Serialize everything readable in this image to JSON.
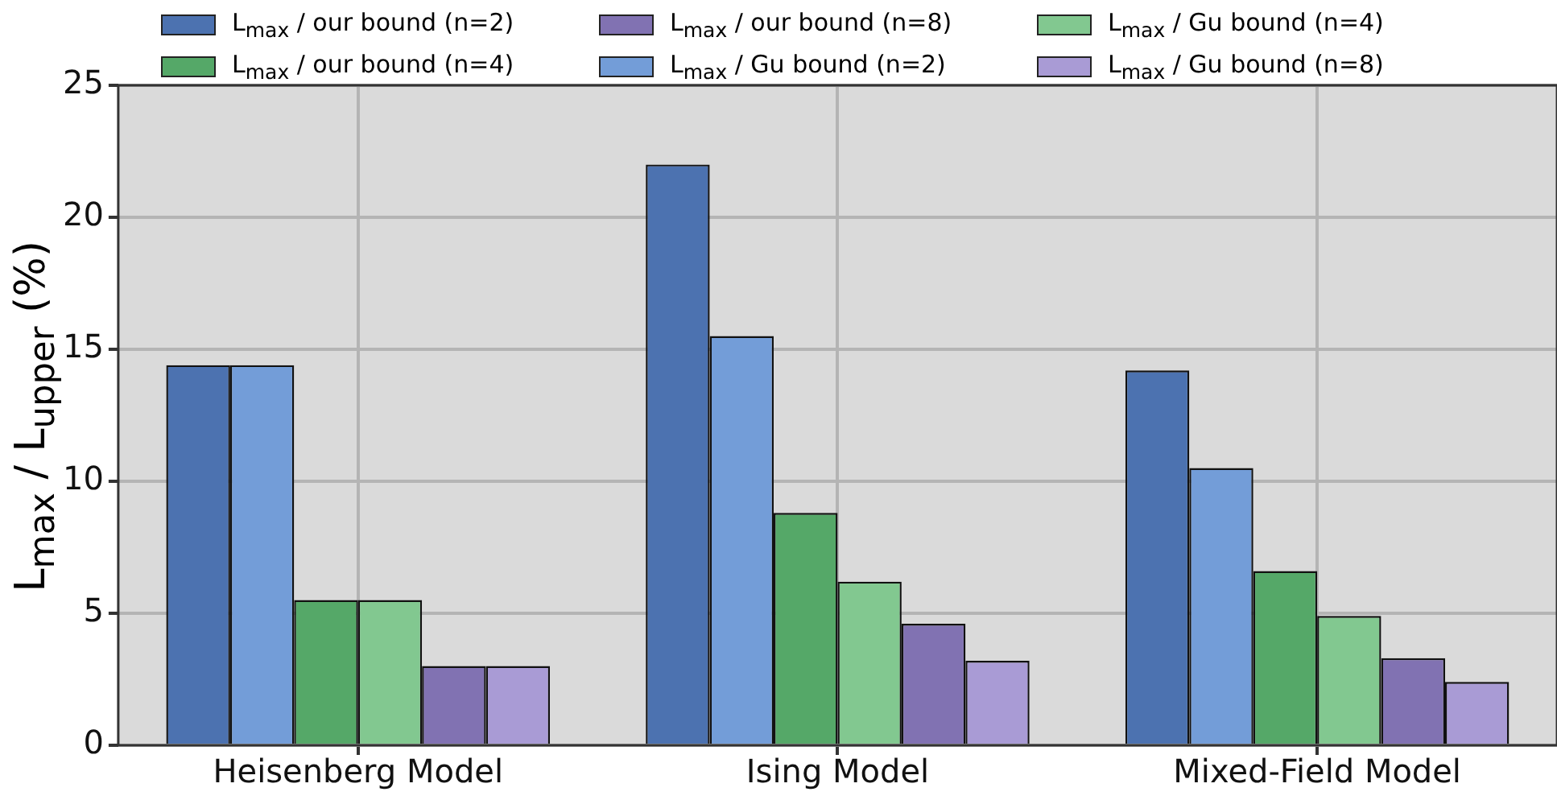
{
  "chart_data": {
    "type": "bar",
    "ylabel": "L$_{max}$ / L$_{upper}$ (%)",
    "categories": [
      "Heisenberg Model",
      "Ising Model",
      "Mixed-Field Model"
    ],
    "series": [
      {
        "name": "L$_{max}$ / our bound (n=2)",
        "color": "#4c72b0",
        "values": [
          14.4,
          22.0,
          14.2
        ]
      },
      {
        "name": "L$_{max}$ / Gu bound (n=2)",
        "color": "#739dd8",
        "values": [
          14.4,
          15.5,
          10.5
        ]
      },
      {
        "name": "L$_{max}$ / our bound (n=4)",
        "color": "#55a868",
        "values": [
          5.5,
          8.8,
          6.6
        ]
      },
      {
        "name": "L$_{max}$ / Gu bound (n=4)",
        "color": "#82c890",
        "values": [
          5.5,
          6.2,
          4.9
        ]
      },
      {
        "name": "L$_{max}$ / our bound (n=8)",
        "color": "#8172b2",
        "values": [
          3.0,
          4.6,
          3.3
        ]
      },
      {
        "name": "L$_{max}$ / Gu bound (n=8)",
        "color": "#a99bd5",
        "values": [
          3.0,
          3.2,
          2.4
        ]
      }
    ],
    "ylim": [
      0,
      25
    ],
    "yticks": [
      0,
      5,
      10,
      15,
      20,
      25
    ],
    "grid": true,
    "legend": "top"
  }
}
